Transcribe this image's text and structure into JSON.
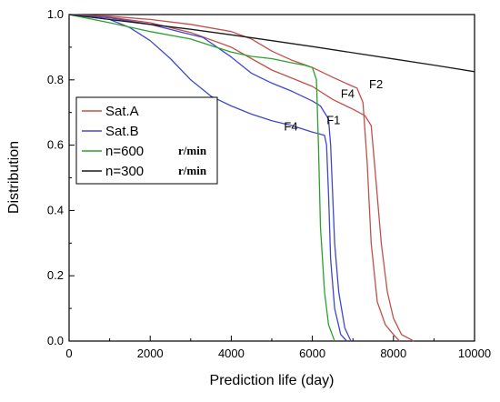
{
  "chart_data": {
    "type": "line",
    "xlabel": "Prediction life (day)",
    "ylabel": "Distribution",
    "xlim": [
      0,
      10000
    ],
    "ylim": [
      0,
      1.0
    ],
    "x_ticks": [
      "0",
      "2000",
      "4000",
      "6000",
      "8000",
      "10000"
    ],
    "y_ticks": [
      "0.0",
      "0.2",
      "0.4",
      "0.6",
      "0.8",
      "1.0"
    ],
    "grid": false,
    "legend_position": "middle-left",
    "legend_unit": "r/min",
    "series": [
      {
        "name": "Sat.A",
        "color": "#c0504d",
        "points": [
          [
            0,
            1.0
          ],
          [
            1000,
            0.995
          ],
          [
            2000,
            0.985
          ],
          [
            3000,
            0.97
          ],
          [
            4000,
            0.948
          ],
          [
            4500,
            0.925
          ],
          [
            5000,
            0.888
          ],
          [
            5500,
            0.86
          ],
          [
            6000,
            0.838
          ],
          [
            6500,
            0.808
          ],
          [
            7000,
            0.78
          ],
          [
            7100,
            0.775
          ],
          [
            7250,
            0.73
          ],
          [
            7350,
            0.55
          ],
          [
            7450,
            0.3
          ],
          [
            7600,
            0.12
          ],
          [
            7800,
            0.05
          ],
          [
            8000,
            0.02
          ],
          [
            8150,
            0.0
          ]
        ]
      },
      {
        "name": "Sat.A",
        "color": "#c0504d",
        "points": [
          [
            0,
            1.0
          ],
          [
            1000,
            0.992
          ],
          [
            2000,
            0.975
          ],
          [
            3000,
            0.945
          ],
          [
            4000,
            0.9
          ],
          [
            5000,
            0.83
          ],
          [
            6000,
            0.78
          ],
          [
            6500,
            0.74
          ],
          [
            7000,
            0.71
          ],
          [
            7300,
            0.69
          ],
          [
            7450,
            0.66
          ],
          [
            7550,
            0.52
          ],
          [
            7700,
            0.3
          ],
          [
            7850,
            0.15
          ],
          [
            8000,
            0.07
          ],
          [
            8200,
            0.02
          ],
          [
            8500,
            0.0
          ]
        ]
      },
      {
        "name": "Sat.B",
        "color": "#3f48cc",
        "points": [
          [
            0,
            1.0
          ],
          [
            1000,
            0.985
          ],
          [
            1500,
            0.96
          ],
          [
            2000,
            0.92
          ],
          [
            2500,
            0.865
          ],
          [
            3000,
            0.8
          ],
          [
            3500,
            0.75
          ],
          [
            4000,
            0.72
          ],
          [
            4500,
            0.695
          ],
          [
            5000,
            0.675
          ],
          [
            5500,
            0.66
          ],
          [
            6000,
            0.64
          ],
          [
            6300,
            0.63
          ],
          [
            6350,
            0.6
          ],
          [
            6400,
            0.45
          ],
          [
            6450,
            0.25
          ],
          [
            6550,
            0.1
          ],
          [
            6700,
            0.02
          ],
          [
            6850,
            0.0
          ]
        ]
      },
      {
        "name": "Sat.B",
        "color": "#3f48cc",
        "points": [
          [
            0,
            1.0
          ],
          [
            1000,
            0.99
          ],
          [
            2000,
            0.97
          ],
          [
            2800,
            0.945
          ],
          [
            3300,
            0.93
          ],
          [
            4000,
            0.87
          ],
          [
            4500,
            0.82
          ],
          [
            5000,
            0.79
          ],
          [
            5500,
            0.765
          ],
          [
            6000,
            0.735
          ],
          [
            6200,
            0.72
          ],
          [
            6400,
            0.68
          ],
          [
            6450,
            0.6
          ],
          [
            6500,
            0.45
          ],
          [
            6550,
            0.3
          ],
          [
            6650,
            0.15
          ],
          [
            6800,
            0.04
          ],
          [
            6950,
            0.0
          ]
        ]
      },
      {
        "name": "n=600",
        "color": "#2ca02c",
        "points": [
          [
            0,
            1.0
          ],
          [
            1000,
            0.975
          ],
          [
            2000,
            0.948
          ],
          [
            3000,
            0.925
          ],
          [
            3500,
            0.905
          ],
          [
            4000,
            0.885
          ],
          [
            4500,
            0.872
          ],
          [
            5000,
            0.865
          ],
          [
            5500,
            0.852
          ],
          [
            5800,
            0.845
          ],
          [
            6000,
            0.838
          ],
          [
            6100,
            0.8
          ],
          [
            6150,
            0.6
          ],
          [
            6200,
            0.35
          ],
          [
            6300,
            0.15
          ],
          [
            6400,
            0.05
          ],
          [
            6550,
            0.0
          ]
        ]
      },
      {
        "name": "n=300",
        "color": "#1a1a1a",
        "points": [
          [
            0,
            1.0
          ],
          [
            1000,
            0.985
          ],
          [
            2000,
            0.97
          ],
          [
            3000,
            0.955
          ],
          [
            4000,
            0.938
          ],
          [
            5000,
            0.92
          ],
          [
            6000,
            0.902
          ],
          [
            7000,
            0.883
          ],
          [
            8000,
            0.864
          ],
          [
            9000,
            0.845
          ],
          [
            10000,
            0.825
          ]
        ]
      }
    ],
    "legend": [
      {
        "label": "Sat.A",
        "color": "#c0504d",
        "unit": ""
      },
      {
        "label": "Sat.B",
        "color": "#3f48cc",
        "unit": ""
      },
      {
        "label": "n=600",
        "color": "#2ca02c",
        "unit": "r/min"
      },
      {
        "label": "n=300",
        "color": "#1a1a1a",
        "unit": "r/min"
      }
    ],
    "annotations": [
      {
        "text": "F2",
        "x": 7400,
        "y": 0.775
      },
      {
        "text": "F4",
        "x": 6700,
        "y": 0.745
      },
      {
        "text": "F1",
        "x": 6350,
        "y": 0.665
      },
      {
        "text": "F4",
        "x": 5300,
        "y": 0.645
      }
    ]
  }
}
